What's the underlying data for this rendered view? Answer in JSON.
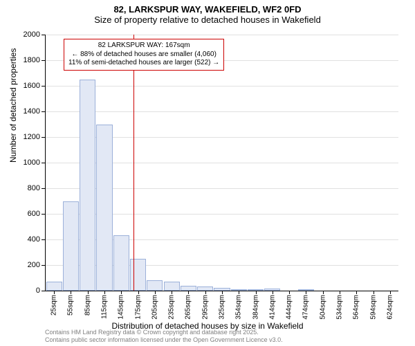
{
  "title": {
    "line1": "82, LARKSPUR WAY, WAKEFIELD, WF2 0FD",
    "line2": "Size of property relative to detached houses in Wakefield"
  },
  "chart": {
    "type": "histogram",
    "ylabel": "Number of detached properties",
    "xlabel": "Distribution of detached houses by size in Wakefield",
    "ylim": [
      0,
      2000
    ],
    "ytick_step": 200,
    "bar_fill": "#e2e8f5",
    "bar_border": "#9bb0d9",
    "grid_color": "#e0e0e0",
    "background_color": "#ffffff",
    "refline_color": "#cc0000",
    "refline_x_value": 167,
    "categories": [
      "25sqm",
      "55sqm",
      "85sqm",
      "115sqm",
      "145sqm",
      "175sqm",
      "205sqm",
      "235sqm",
      "265sqm",
      "295sqm",
      "325sqm",
      "354sqm",
      "384sqm",
      "414sqm",
      "444sqm",
      "474sqm",
      "504sqm",
      "534sqm",
      "564sqm",
      "594sqm",
      "624sqm"
    ],
    "values": [
      70,
      700,
      1650,
      1300,
      430,
      250,
      80,
      70,
      40,
      30,
      20,
      5,
      10,
      15,
      0,
      5,
      0,
      0,
      0,
      0,
      0
    ],
    "annotation": {
      "line1": "82 LARKSPUR WAY: 167sqm",
      "line2": "← 88% of detached houses are smaller (4,060)",
      "line3": "11% of semi-detached houses are larger (522) →"
    }
  },
  "footer": {
    "line1": "Contains HM Land Registry data © Crown copyright and database right 2025.",
    "line2": "Contains public sector information licensed under the Open Government Licence v3.0."
  }
}
